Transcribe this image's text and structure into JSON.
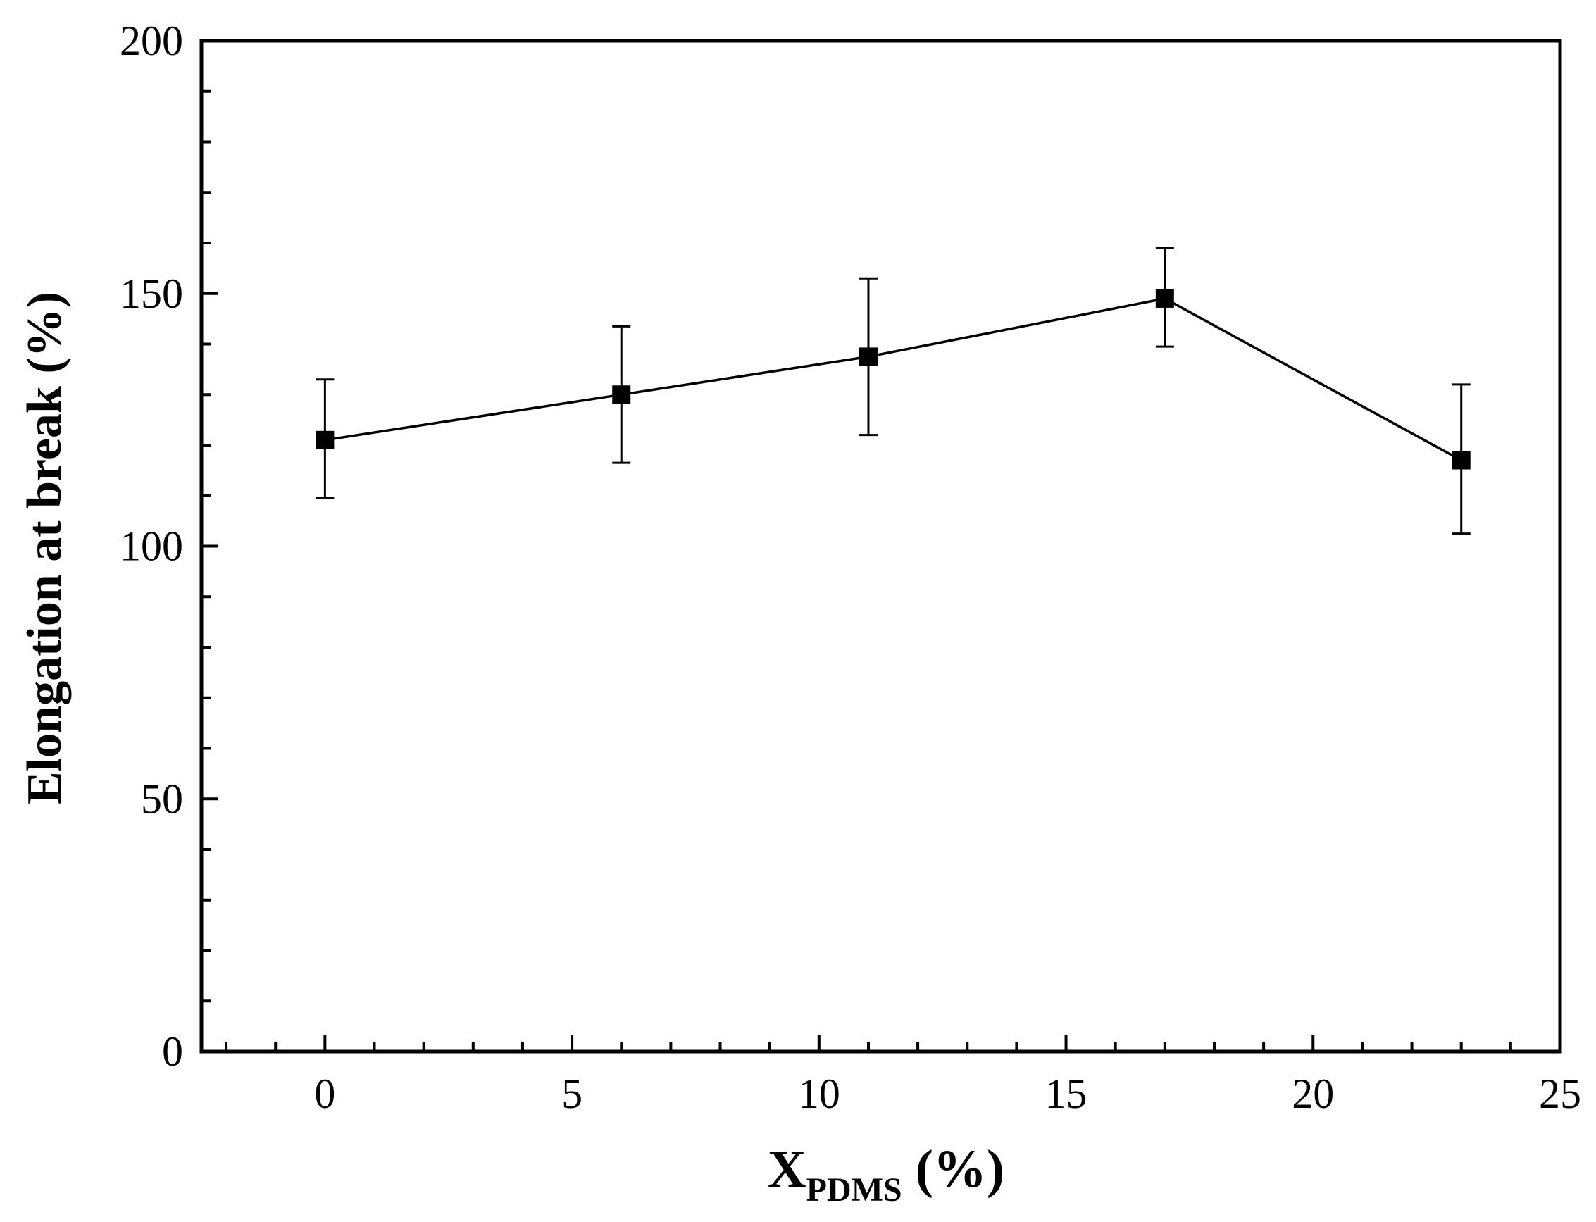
{
  "chart_data": {
    "type": "line",
    "title": "",
    "xlabel": {
      "main": "X",
      "subscript": "PDMS",
      "suffix": " (%)"
    },
    "ylabel": "Elongation at break (%)",
    "xlim": [
      -2.5,
      25
    ],
    "ylim": [
      0,
      200
    ],
    "x_ticks": [
      0,
      5,
      10,
      15,
      20,
      25
    ],
    "x_tick_labels": [
      "0",
      "5",
      "10",
      "15",
      "20",
      "25"
    ],
    "y_ticks": [
      0,
      50,
      100,
      150,
      200
    ],
    "y_tick_labels": [
      "0",
      "50",
      "100",
      "150",
      "200"
    ],
    "x_minor_step": 1,
    "y_minor_step": 10,
    "grid": false,
    "legend": "none",
    "marker": "square",
    "series": [
      {
        "name": "Elongation at break",
        "x": [
          0,
          6,
          11,
          17,
          23
        ],
        "y": [
          121,
          130,
          137.5,
          149,
          117
        ],
        "err_low": [
          109.5,
          116.5,
          122,
          139.5,
          102.5
        ],
        "err_high": [
          133,
          143.5,
          153,
          159,
          132
        ]
      }
    ]
  }
}
